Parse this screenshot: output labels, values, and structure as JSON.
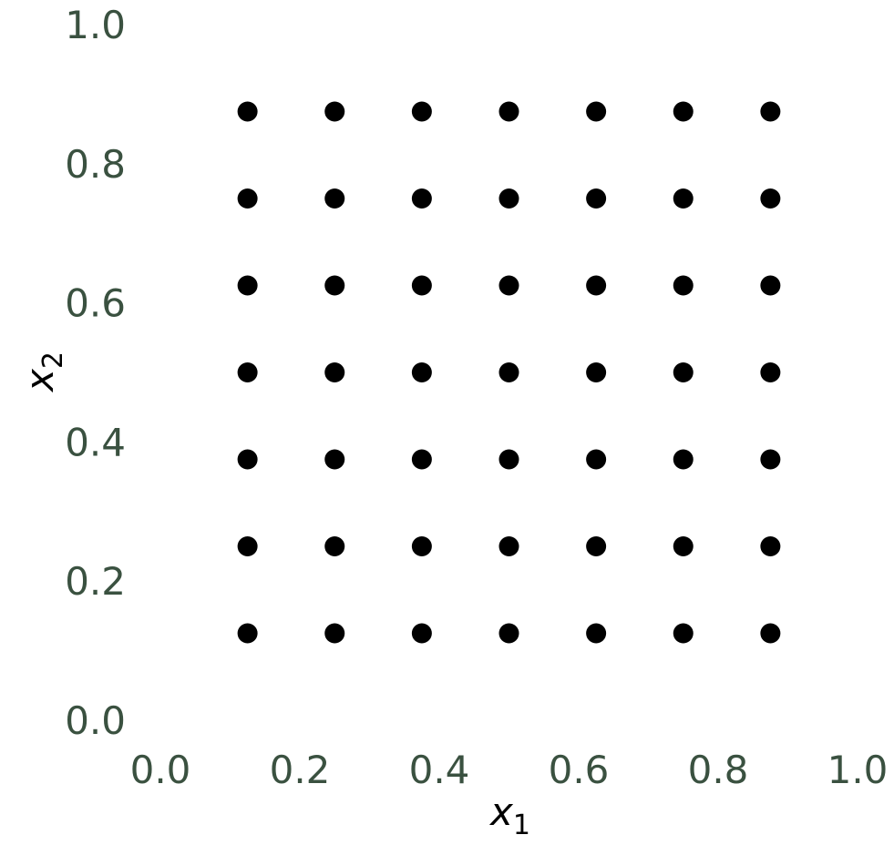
{
  "chart_data": {
    "type": "scatter",
    "title": "",
    "xlabel": "x",
    "xlabel_subscript": "1",
    "ylabel": "x",
    "ylabel_subscript": "2",
    "xlim": [
      0.0,
      1.0
    ],
    "ylim": [
      0.0,
      1.0
    ],
    "grid": false,
    "x_ticks": [
      "0.0",
      "0.2",
      "0.4",
      "0.6",
      "0.8",
      "1.0"
    ],
    "y_ticks": [
      "0.0",
      "0.2",
      "0.4",
      "0.6",
      "0.8",
      "1.0"
    ],
    "tick_color": "#3a5140",
    "marker_color": "#000000",
    "series": [
      {
        "points": [
          [
            0.125,
            0.125
          ],
          [
            0.25,
            0.125
          ],
          [
            0.375,
            0.125
          ],
          [
            0.5,
            0.125
          ],
          [
            0.625,
            0.125
          ],
          [
            0.75,
            0.125
          ],
          [
            0.875,
            0.125
          ],
          [
            0.125,
            0.25
          ],
          [
            0.25,
            0.25
          ],
          [
            0.375,
            0.25
          ],
          [
            0.5,
            0.25
          ],
          [
            0.625,
            0.25
          ],
          [
            0.75,
            0.25
          ],
          [
            0.875,
            0.25
          ],
          [
            0.125,
            0.375
          ],
          [
            0.25,
            0.375
          ],
          [
            0.375,
            0.375
          ],
          [
            0.5,
            0.375
          ],
          [
            0.625,
            0.375
          ],
          [
            0.75,
            0.375
          ],
          [
            0.875,
            0.375
          ],
          [
            0.125,
            0.5
          ],
          [
            0.25,
            0.5
          ],
          [
            0.375,
            0.5
          ],
          [
            0.5,
            0.5
          ],
          [
            0.625,
            0.5
          ],
          [
            0.75,
            0.5
          ],
          [
            0.875,
            0.5
          ],
          [
            0.125,
            0.625
          ],
          [
            0.25,
            0.625
          ],
          [
            0.375,
            0.625
          ],
          [
            0.5,
            0.625
          ],
          [
            0.625,
            0.625
          ],
          [
            0.75,
            0.625
          ],
          [
            0.875,
            0.625
          ],
          [
            0.125,
            0.75
          ],
          [
            0.25,
            0.75
          ],
          [
            0.375,
            0.75
          ],
          [
            0.5,
            0.75
          ],
          [
            0.625,
            0.75
          ],
          [
            0.75,
            0.75
          ],
          [
            0.875,
            0.75
          ],
          [
            0.125,
            0.875
          ],
          [
            0.25,
            0.875
          ],
          [
            0.375,
            0.875
          ],
          [
            0.5,
            0.875
          ],
          [
            0.625,
            0.875
          ],
          [
            0.75,
            0.875
          ],
          [
            0.875,
            0.875
          ]
        ]
      }
    ]
  }
}
